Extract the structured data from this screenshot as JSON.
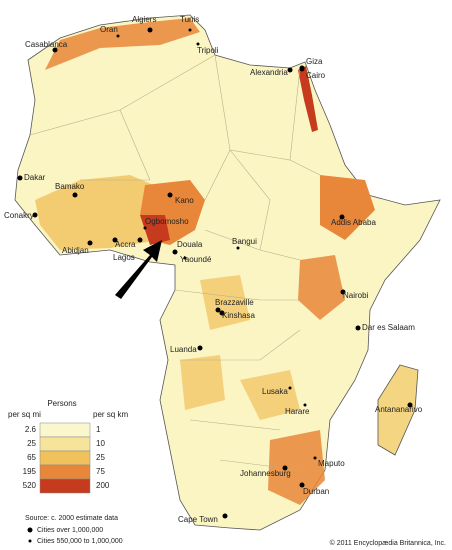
{
  "cities": [
    "Algiers",
    "Tunis",
    "Oran",
    "Casablanca",
    "Tripoli",
    "Giza",
    "Cairo",
    "Alexandria",
    "Dakar",
    "Bamako",
    "Conakry",
    "Abidjan",
    "Accra",
    "Lagos",
    "Ogbomosho",
    "Kano",
    "Douala",
    "Yaoundé",
    "Bangui",
    "Addis Ababa",
    "Nairobi",
    "Brazzaville",
    "Kinshasa",
    "Dar es Salaam",
    "Luanda",
    "Lusaka",
    "Harare",
    "Antananarivo",
    "Maputo",
    "Johannesburg",
    "Durban",
    "Cape Town"
  ],
  "legend": {
    "title": "Persons",
    "unit_left": "per sq mi",
    "unit_right": "per sq km",
    "rows": [
      {
        "mi": 2.6,
        "km": 1,
        "color": "#fbf7cc"
      },
      {
        "mi": 25,
        "km": 10,
        "color": "#f6e49a"
      },
      {
        "mi": 65,
        "km": 25,
        "color": "#f1c15c"
      },
      {
        "mi": 195,
        "km": 75,
        "color": "#e8873a"
      },
      {
        "mi": 520,
        "km": 200,
        "color": "#c63a1e"
      }
    ]
  },
  "source": "Source: c. 2000 estimate data",
  "city_legend": [
    "Cities over 1,000,000",
    "Cities 550,000 to 1,000,000"
  ],
  "copyright": "© 2011 Encyclopædia Britannica, Inc."
}
